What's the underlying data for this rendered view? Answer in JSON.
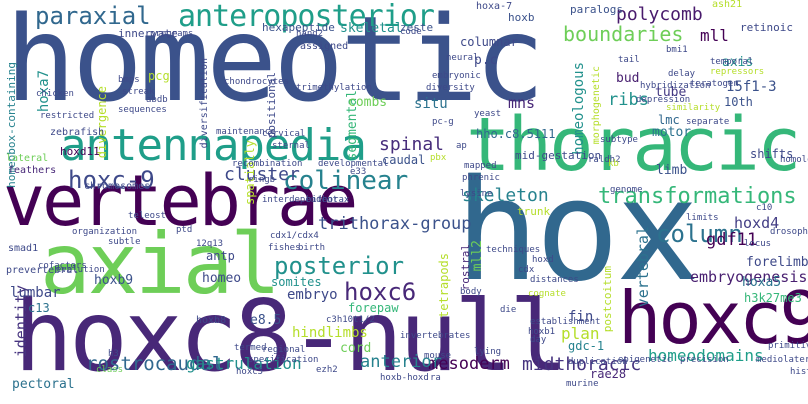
{
  "words": [
    {
      "text": "homeotic",
      "color": "#3b528b"
    },
    {
      "text": "hox",
      "color": "#31688e"
    },
    {
      "text": "hoxc8-null",
      "color": "#482878"
    },
    {
      "text": "vertebrae",
      "color": "#440154"
    },
    {
      "text": "axial",
      "color": "#6ece58"
    },
    {
      "text": "thoracic",
      "color": "#35b779"
    },
    {
      "text": "hoxc9",
      "color": "#440154"
    },
    {
      "text": "antennapedia",
      "color": "#1f9e89"
    },
    {
      "text": "paraxial",
      "color": "#31688e"
    },
    {
      "text": "anteroposterior",
      "color": "#1f9e89"
    },
    {
      "text": "colinear",
      "color": "#26828e"
    },
    {
      "text": "posterior",
      "color": "#21918c"
    },
    {
      "text": "hoxc-9",
      "color": "#3e4989"
    },
    {
      "text": "hoxc6",
      "color": "#482878"
    },
    {
      "text": "column",
      "color": "#2c728e"
    },
    {
      "text": "transformations",
      "color": "#35b779"
    },
    {
      "text": "boundaries",
      "color": "#6ece58"
    },
    {
      "text": "polycomb",
      "color": "#481a6c"
    },
    {
      "text": "skeleton",
      "color": "#26828e"
    },
    {
      "text": "spinal",
      "color": "#472d7b"
    },
    {
      "text": "cluster",
      "color": "#3e4989"
    },
    {
      "text": "homeodomains",
      "color": "#1f9e89"
    },
    {
      "text": "midthoracic",
      "color": "#46337f"
    },
    {
      "text": "mesoderm",
      "color": "#440154"
    },
    {
      "text": "rostrocaudal",
      "color": "#31688e"
    },
    {
      "text": "anterior",
      "color": "#26828e"
    },
    {
      "text": "embryogenesis",
      "color": "#481f70"
    },
    {
      "text": "trithorax-group",
      "color": "#3b528b"
    },
    {
      "text": "gdf11",
      "color": "#440154"
    },
    {
      "text": "hoxd4",
      "color": "#433e85"
    },
    {
      "text": "forelimb",
      "color": "#3e4989"
    },
    {
      "text": "hoxa5",
      "color": "#2c728e"
    },
    {
      "text": "h3k27me3",
      "color": "#35b779"
    },
    {
      "text": "patterning",
      "color": "#2c728e"
    },
    {
      "text": "vertebral",
      "color": "#31688e"
    },
    {
      "text": "identity",
      "color": "#46337f"
    },
    {
      "text": "lumbar",
      "color": "#3e4989"
    },
    {
      "text": "hoxb9",
      "color": "#3b528b"
    },
    {
      "text": "embryo",
      "color": "#3e4989"
    },
    {
      "text": "somites",
      "color": "#21918c"
    },
    {
      "text": "mesoderm",
      "color": "#440154"
    },
    {
      "text": "hindlimbs",
      "color": "#b5de2b"
    },
    {
      "text": "gastrulation",
      "color": "#21918c"
    },
    {
      "text": "pectoral",
      "color": "#2c728e"
    },
    {
      "text": "cord",
      "color": "#6ece58"
    },
    {
      "text": "plan",
      "color": "#b5de2b"
    },
    {
      "text": "gdc-1",
      "color": "#26828e"
    },
    {
      "text": "rae28",
      "color": "#482878"
    },
    {
      "text": "hoxa7",
      "color": "#21918c"
    },
    {
      "text": "mns",
      "color": "#482878"
    },
    {
      "text": "ribs",
      "color": "#21918c"
    },
    {
      "text": "mll",
      "color": "#440154"
    },
    {
      "text": "tube",
      "color": "#443a83"
    },
    {
      "text": "axis",
      "color": "#21918c"
    },
    {
      "text": "lmc",
      "color": "#31688e"
    },
    {
      "text": "motor",
      "color": "#2c728e"
    },
    {
      "text": "15f1-3",
      "color": "#3b528b"
    },
    {
      "text": "10th",
      "color": "#3b528b"
    },
    {
      "text": "hho.c8.5111",
      "color": "#31688e"
    },
    {
      "text": "mid-gestation",
      "color": "#3e4989"
    },
    {
      "text": "shifts",
      "color": "#3e4989"
    },
    {
      "text": "limb",
      "color": "#3b528b"
    },
    {
      "text": "bud",
      "color": "#481f70"
    },
    {
      "text": "p.c",
      "color": "#3e4989"
    },
    {
      "text": "situ",
      "color": "#2c728e"
    },
    {
      "text": "combs",
      "color": "#6ece58"
    },
    {
      "text": "caudal",
      "color": "#3b528b"
    },
    {
      "text": "skeletal",
      "color": "#21918c"
    },
    {
      "text": "hoxb",
      "color": "#3b528b"
    },
    {
      "text": "zeste",
      "color": "#3b528b"
    },
    {
      "text": "paralogs",
      "color": "#3b528b"
    },
    {
      "text": "columnar",
      "color": "#3e4989"
    },
    {
      "text": "hexapeptide",
      "color": "#3b528b"
    },
    {
      "text": "innervate",
      "color": "#3e4989"
    },
    {
      "text": "retinoic",
      "color": "#3e4989"
    },
    {
      "text": "pcg",
      "color": "#b5de2b"
    },
    {
      "text": "divergence",
      "color": "#b5de2b"
    },
    {
      "text": "diversification",
      "color": "#3e4989"
    },
    {
      "text": "positional",
      "color": "#3e4989"
    },
    {
      "text": "segmental",
      "color": "#35b779"
    },
    {
      "text": "spatially",
      "color": "#b5de2b"
    },
    {
      "text": "homeobox-containing",
      "color": "#26828e"
    },
    {
      "text": "antp",
      "color": "#3e4989"
    },
    {
      "text": "homeo",
      "color": "#3e4989"
    },
    {
      "text": "hoxd11",
      "color": "#440154"
    },
    {
      "text": "chromosomes",
      "color": "#3e4989"
    },
    {
      "text": "fin",
      "color": "#3e4989"
    },
    {
      "text": "rostral",
      "color": "#31688e"
    },
    {
      "text": "trunk",
      "color": "#482878"
    },
    {
      "text": "mll2",
      "color": "#b5de2b"
    },
    {
      "text": "tetrapods",
      "color": "#6ece58"
    },
    {
      "text": "postcoitum",
      "color": "#b5de2b"
    },
    {
      "text": "forepaw",
      "color": "#b5de2b"
    },
    {
      "text": "e8.5",
      "color": "#35b779"
    },
    {
      "text": "c13",
      "color": "#3b528b"
    },
    {
      "text": "hoxb8",
      "color": "#2c728e"
    },
    {
      "text": "morphogenetic",
      "color": "#3e4989"
    },
    {
      "text": "homeologous",
      "color": "#b5de2b"
    },
    {
      "text": "hoxa-7",
      "color": "#21918c"
    },
    {
      "text": "ash21",
      "color": "#3e4989"
    },
    {
      "text": "assigned",
      "color": "#b5de2b"
    },
    {
      "text": "hand2",
      "color": "#3e4989"
    },
    {
      "text": "programs",
      "color": "#3e4989"
    },
    {
      "text": "lateral",
      "color": "#3e4989"
    },
    {
      "text": "zebrafish",
      "color": "#6ece58"
    },
    {
      "text": "restricted",
      "color": "#3e4989"
    },
    {
      "text": "feathers",
      "color": "#3e4989"
    },
    {
      "text": "smad1",
      "color": "#482878"
    },
    {
      "text": "prevertebral",
      "color": "#3e4989"
    },
    {
      "text": "evolution",
      "color": "#3e4989"
    },
    {
      "text": "organization",
      "color": "#3e4989"
    },
    {
      "text": "subtle",
      "color": "#3e4989"
    },
    {
      "text": "teleost",
      "color": "#3e4989"
    },
    {
      "text": "cofactors",
      "color": "#3e4989"
    },
    {
      "text": "ptd",
      "color": "#3e4989"
    },
    {
      "text": "12q13",
      "color": "#3e4989"
    },
    {
      "text": "h3",
      "color": "#3e4989"
    },
    {
      "text": "class",
      "color": "#3e4989"
    },
    {
      "text": "specification",
      "color": "#6ece58"
    },
    {
      "text": "hoxc5",
      "color": "#3e4989"
    },
    {
      "text": "regional",
      "color": "#3e4989"
    },
    {
      "text": "termed",
      "color": "#3e4989"
    },
    {
      "text": "ezh2",
      "color": "#3e4989"
    },
    {
      "text": "c3h10t1/2",
      "color": "#3e4989"
    },
    {
      "text": "invertebrates",
      "color": "#3e4989"
    },
    {
      "text": "fishes",
      "color": "#3e4989"
    },
    {
      "text": "birth",
      "color": "#3e4989"
    },
    {
      "text": "recombination",
      "color": "#3e4989"
    },
    {
      "text": "developmental",
      "color": "#3e4989"
    },
    {
      "text": "interdependent",
      "color": "#3e4989"
    },
    {
      "text": "bithorax",
      "color": "#3e4989"
    },
    {
      "text": "maintenance",
      "color": "#3e4989"
    },
    {
      "text": "cervical",
      "color": "#3e4989"
    },
    {
      "text": "chondrocytes",
      "color": "#3e4989"
    },
    {
      "text": "trimethylation",
      "color": "#3e4989"
    },
    {
      "text": "embryonic",
      "color": "#3e4989"
    },
    {
      "text": "diversity",
      "color": "#3e4989"
    },
    {
      "text": "yeast",
      "color": "#3e4989"
    },
    {
      "text": "phrenic",
      "color": "#3e4989"
    },
    {
      "text": "lysine",
      "color": "#3e4989"
    },
    {
      "text": "mapped",
      "color": "#3e4989"
    },
    {
      "text": "ap",
      "color": "#3e4989"
    },
    {
      "text": "pbx",
      "color": "#3e4989"
    },
    {
      "text": "raldh2",
      "color": "#b5de2b"
    },
    {
      "text": "kb",
      "color": "#3e4989"
    },
    {
      "text": "genome",
      "color": "#b5de2b"
    },
    {
      "text": "limits",
      "color": "#3e4989"
    },
    {
      "text": "c10",
      "color": "#3e4989"
    },
    {
      "text": "drosophila",
      "color": "#3e4989"
    },
    {
      "text": "locus",
      "color": "#3e4989"
    },
    {
      "text": "homologue",
      "color": "#3e4989"
    },
    {
      "text": "hoxd",
      "color": "#3e4989"
    },
    {
      "text": "cdx",
      "color": "#3e4989"
    },
    {
      "text": "distances",
      "color": "#3e4989"
    },
    {
      "text": "cognate",
      "color": "#3e4989"
    },
    {
      "text": "body",
      "color": "#b5de2b"
    },
    {
      "text": "techniques",
      "color": "#3e4989"
    },
    {
      "text": "die",
      "color": "#3e4989"
    },
    {
      "text": "mouse",
      "color": "#3e4989"
    },
    {
      "text": "lying",
      "color": "#3e4989"
    },
    {
      "text": "ra",
      "color": "#3e4989"
    },
    {
      "text": "duplication",
      "color": "#3e4989"
    },
    {
      "text": "murine",
      "color": "#3e4989"
    },
    {
      "text": "epigenetic",
      "color": "#3e4989"
    },
    {
      "text": "precision",
      "color": "#3e4989"
    },
    {
      "text": "mediolateral",
      "color": "#3e4989"
    },
    {
      "text": "primitive",
      "color": "#3e4989"
    },
    {
      "text": "histone",
      "color": "#3e4989"
    },
    {
      "text": "day",
      "color": "#3e4989"
    },
    {
      "text": "establishment",
      "color": "#3e4989"
    },
    {
      "text": "hoxb1",
      "color": "#3e4989"
    },
    {
      "text": "hoxb-hoxd",
      "color": "#3e4989"
    },
    {
      "text": "code",
      "color": "#3e4989"
    },
    {
      "text": "neural",
      "color": "#3e4989"
    },
    {
      "text": "tail",
      "color": "#3e4989"
    },
    {
      "text": "bmi1",
      "color": "#3e4989"
    },
    {
      "text": "temporal",
      "color": "#3e4989"
    },
    {
      "text": "delay",
      "color": "#3e4989"
    },
    {
      "text": "teratogen",
      "color": "#3e4989"
    },
    {
      "text": "repressors",
      "color": "#3e4989"
    },
    {
      "text": "hybridization",
      "color": "#b5de2b"
    },
    {
      "text": "depression",
      "color": "#3e4989"
    },
    {
      "text": "similarity",
      "color": "#3e4989"
    },
    {
      "text": "separate",
      "color": "#b5de2b"
    },
    {
      "text": "subtype",
      "color": "#3e4989"
    },
    {
      "text": "streak",
      "color": "#3e4989"
    },
    {
      "text": "abdb",
      "color": "#3e4989"
    },
    {
      "text": "bmps",
      "color": "#3e4989"
    },
    {
      "text": "sequences",
      "color": "#3e4989"
    },
    {
      "text": "chicken",
      "color": "#3e4989"
    },
    {
      "text": "sternal",
      "color": "#3e4989"
    },
    {
      "text": "pc-g",
      "color": "#3e4989"
    },
    {
      "text": "e33",
      "color": "#3e4989"
    },
    {
      "text": "ringb",
      "color": "#3e4989"
    },
    {
      "text": "cdx1/cdx4",
      "color": "#3e4989"
    },
    {
      "text": "systemic",
      "color": "#3e4989"
    }
  ]
}
